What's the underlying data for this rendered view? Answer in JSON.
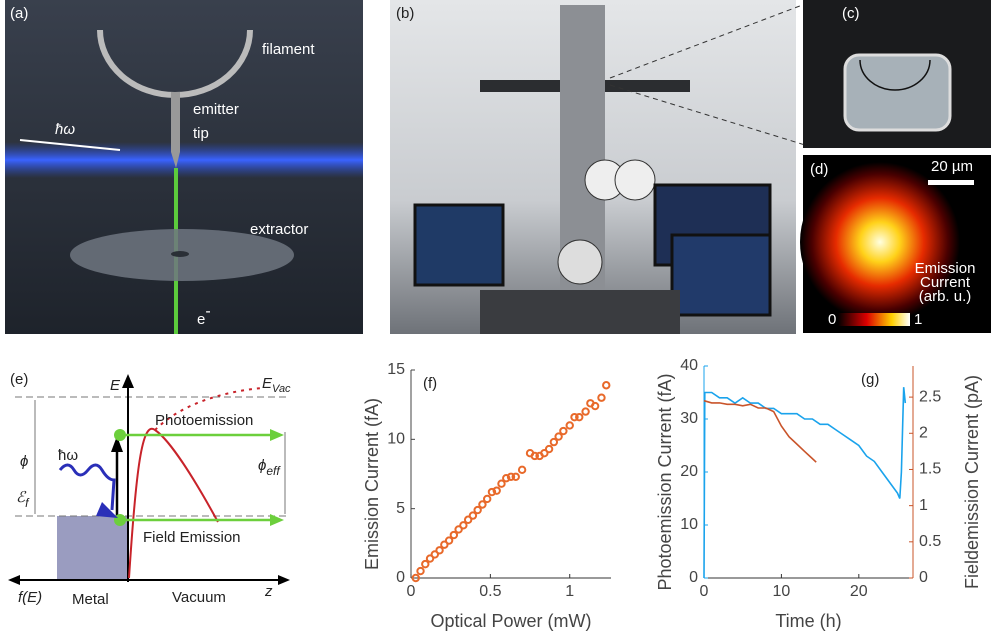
{
  "panels": {
    "a": {
      "label": "(a)",
      "filament": "filament",
      "emitter": "emitter",
      "tip": "tip",
      "hbar": "ħω",
      "extractor": "extractor",
      "electron": "e",
      "electron_sup": "-"
    },
    "b": {
      "label": "(b)"
    },
    "c": {
      "label": "(c)"
    },
    "d": {
      "label": "(d)",
      "scale": "20 µm",
      "cbar_title": [
        "Emission",
        "Current",
        "(arb. u.)"
      ],
      "cbar_ticks": [
        0,
        1
      ]
    },
    "e": {
      "label": "(e)",
      "E": "E",
      "Evac_main": "E",
      "Evac_sub": "Vac",
      "hbar": "ħω",
      "phi": "ϕ",
      "phi_eff_main": "ϕ",
      "phi_eff_sub": "eff",
      "ef_main": "ℰ",
      "ef_sub": "f",
      "photo": "Photoemission",
      "field": "Field Emission",
      "fE": "f(E)",
      "metal": "Metal",
      "vacuum": "Vacuum",
      "z": "z"
    }
  },
  "chart_data": [
    {
      "type": "scatter",
      "label": "(f)",
      "xlabel": "Optical Power (mW)",
      "ylabel": "Emission Current (fA)",
      "color": "#e8692a",
      "x": [
        0.03,
        0.06,
        0.09,
        0.12,
        0.15,
        0.18,
        0.21,
        0.24,
        0.27,
        0.3,
        0.33,
        0.36,
        0.39,
        0.42,
        0.45,
        0.48,
        0.51,
        0.54,
        0.57,
        0.6,
        0.63,
        0.66,
        0.7,
        0.75,
        0.78,
        0.81,
        0.84,
        0.87,
        0.9,
        0.93,
        0.96,
        1.0,
        1.03,
        1.06,
        1.1,
        1.13,
        1.16,
        1.2,
        1.23
      ],
      "values": [
        0,
        0.5,
        1.0,
        1.4,
        1.7,
        2.0,
        2.4,
        2.7,
        3.1,
        3.5,
        3.8,
        4.2,
        4.5,
        4.9,
        5.3,
        5.7,
        6.2,
        6.3,
        6.8,
        7.2,
        7.3,
        7.3,
        7.8,
        9.0,
        8.8,
        8.8,
        9.0,
        9.3,
        9.8,
        10.2,
        10.6,
        11.0,
        11.6,
        11.6,
        12.0,
        12.6,
        12.4,
        13.0,
        13.9
      ],
      "xlim": [
        0,
        1.26
      ],
      "ylim": [
        0,
        15
      ],
      "xticks": [
        0,
        0.5,
        1
      ],
      "yticks": [
        0,
        5,
        10,
        15
      ]
    },
    {
      "type": "line",
      "label": "(g)",
      "xlabel": "Time (h)",
      "ylabel": "Photoemission Current (fA)",
      "y2label": "Fieldemission Current (pA)",
      "xlim": [
        0,
        27
      ],
      "ylim": [
        0,
        40
      ],
      "y2lim": [
        0,
        2.93
      ],
      "xticks": [
        0,
        10,
        20
      ],
      "yticks": [
        0,
        10,
        20,
        30,
        40
      ],
      "y2ticks": [
        0,
        0.5,
        1,
        1.5,
        2,
        2.5
      ],
      "series": [
        {
          "color": "#1aa3ec",
          "x": [
            0,
            0.1,
            1,
            2,
            3,
            4,
            5,
            6,
            7,
            8,
            9,
            10,
            11,
            12,
            13,
            14,
            15,
            16,
            17,
            18,
            19,
            20,
            21,
            22,
            23,
            24,
            25,
            25.3,
            25.5,
            25.8,
            26
          ],
          "values": [
            0,
            35,
            35,
            34,
            34,
            33,
            34,
            33,
            33,
            32,
            32,
            31,
            31,
            31,
            30,
            30,
            29,
            29,
            28,
            27,
            26,
            25,
            23,
            22,
            20,
            18,
            16,
            15,
            20,
            36,
            33
          ]
        },
        {
          "color": "#c9542a",
          "axis": "y2",
          "x": [
            0,
            1,
            2,
            3,
            4,
            5,
            6,
            7,
            8,
            9,
            10,
            11,
            12,
            13,
            14,
            14.5
          ],
          "values": [
            2.45,
            2.42,
            2.42,
            2.4,
            2.4,
            2.38,
            2.4,
            2.35,
            2.35,
            2.3,
            2.1,
            1.95,
            1.85,
            1.75,
            1.65,
            1.6
          ]
        }
      ]
    }
  ]
}
